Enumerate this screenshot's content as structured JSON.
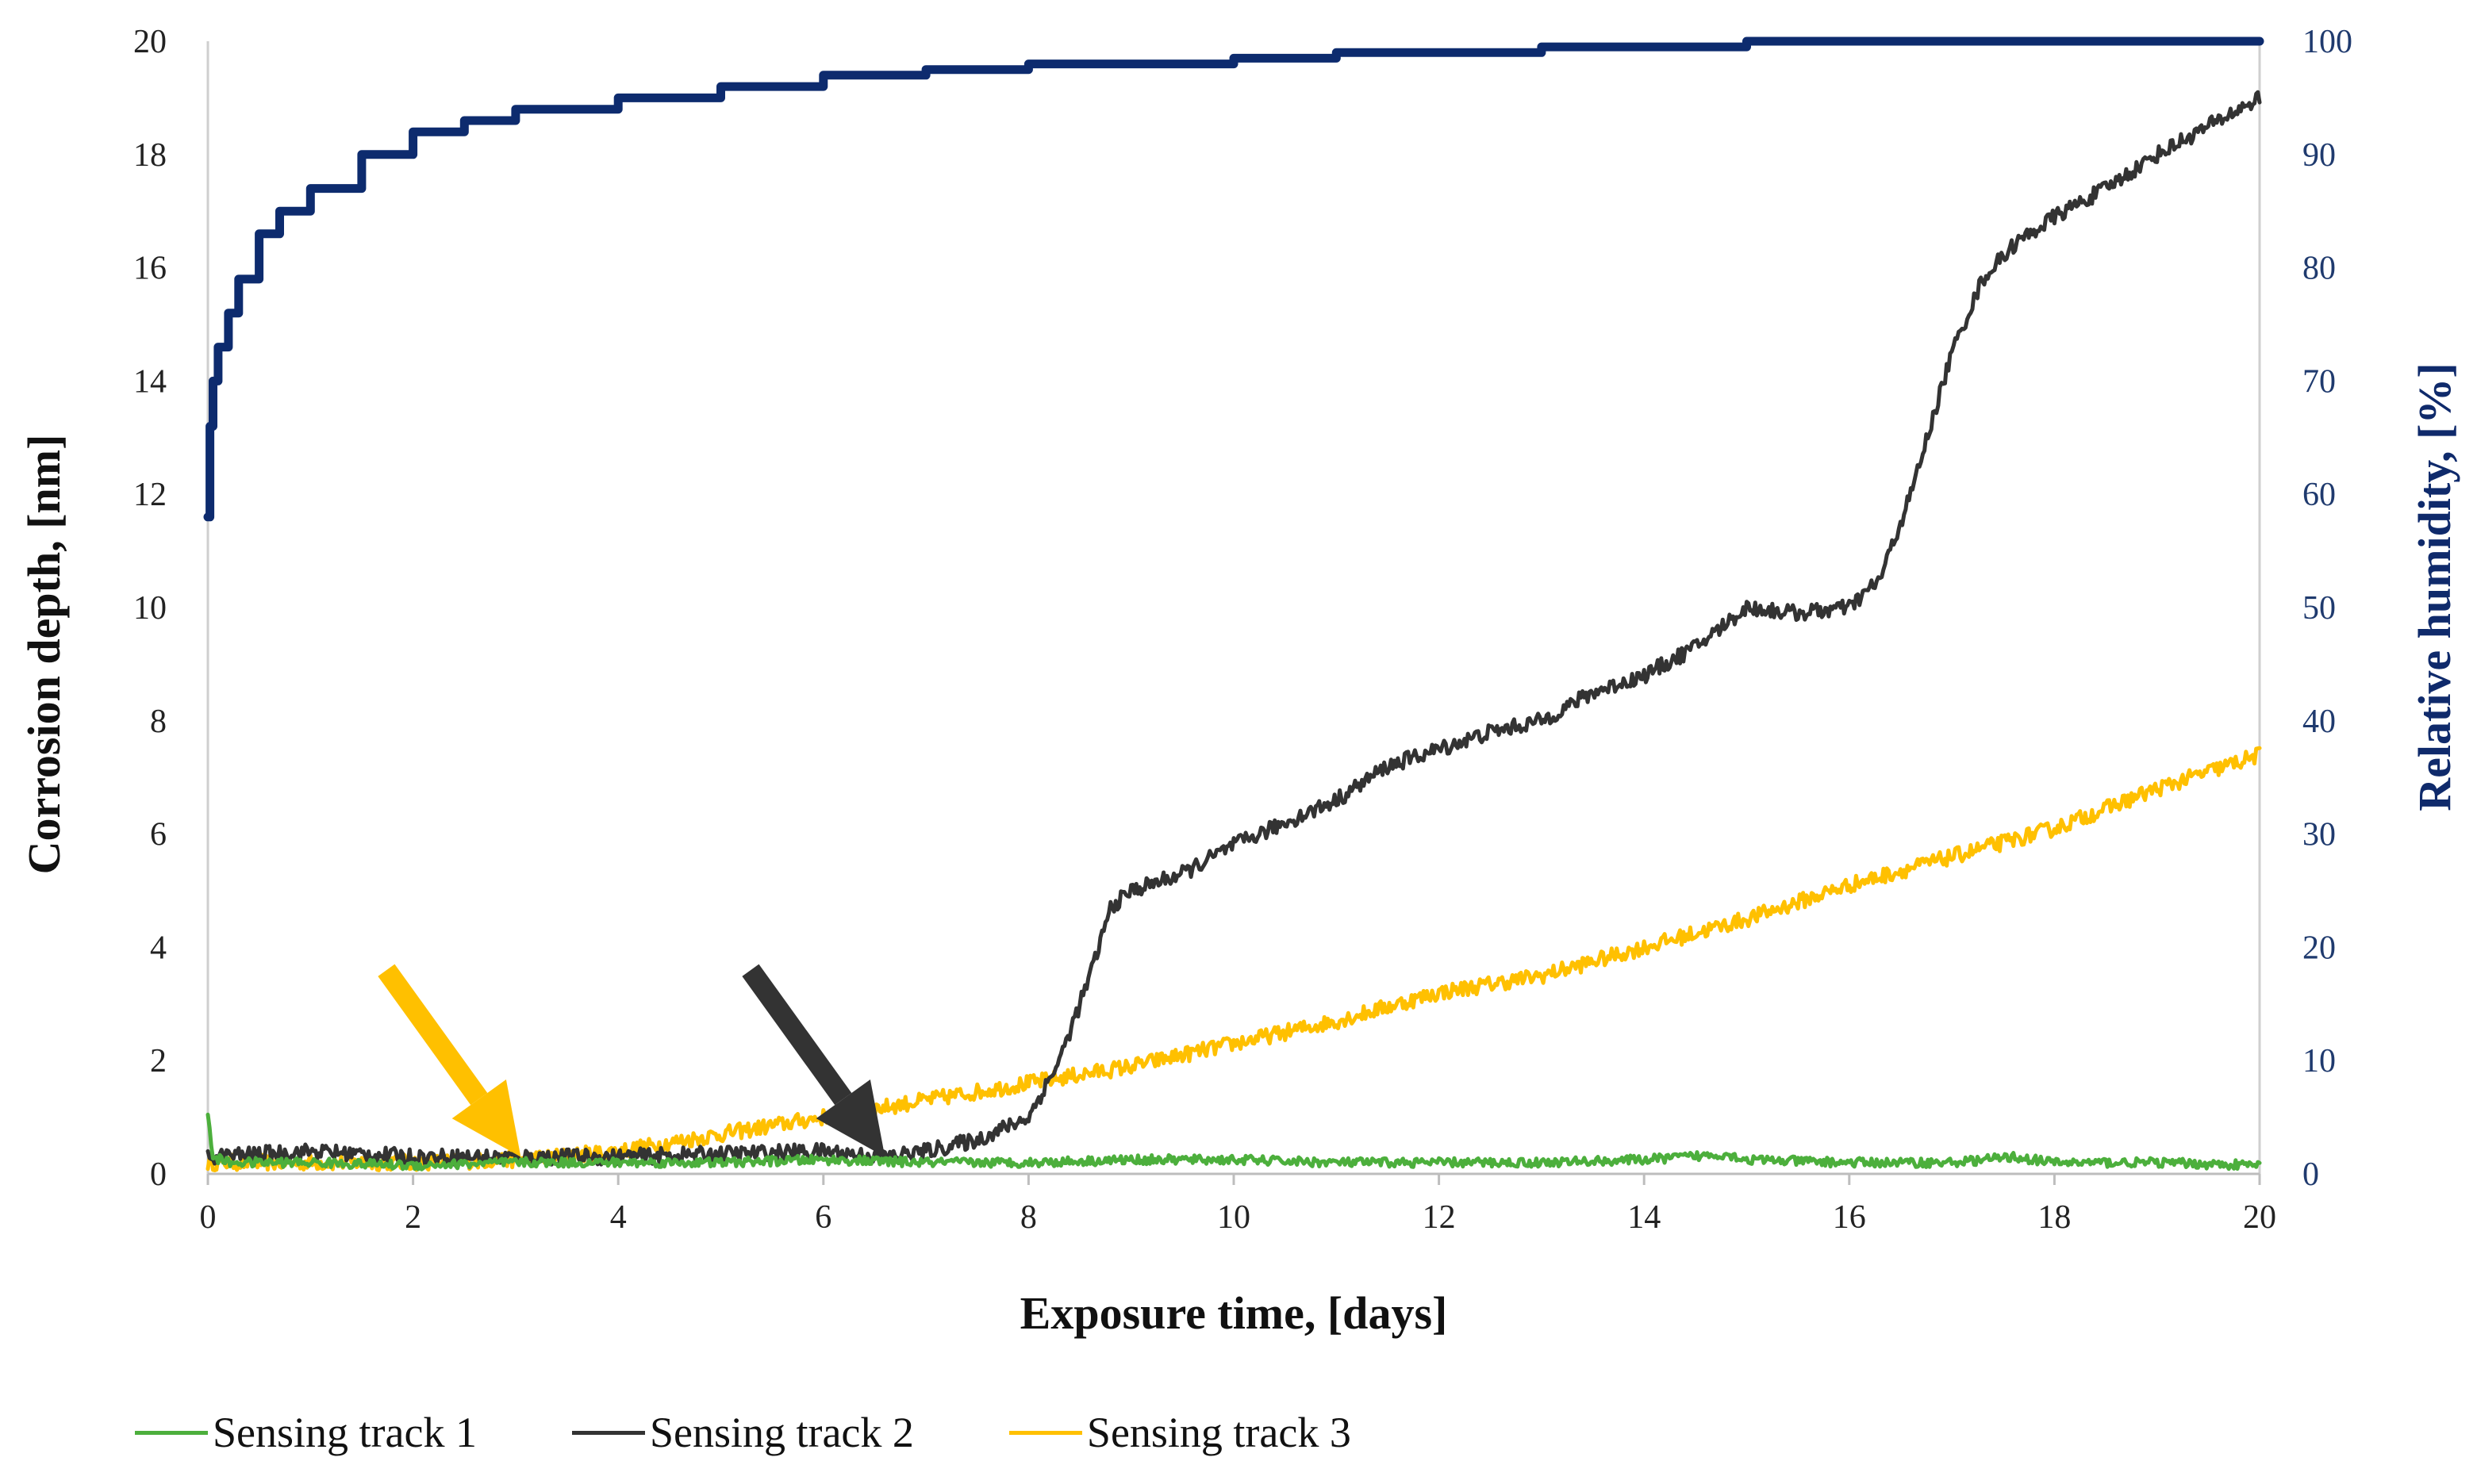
{
  "chart_data": {
    "type": "line",
    "title": "",
    "xlabel": "Exposure time, [days]",
    "ylabel": "Corrosion depth, [nm]",
    "y2label": "Relative humidity, [%]",
    "xlim": [
      0,
      20
    ],
    "ylim": [
      0,
      20
    ],
    "y2lim": [
      0,
      100
    ],
    "xticks": [
      0,
      2,
      4,
      6,
      8,
      10,
      12,
      14,
      16,
      18,
      20
    ],
    "yticks": [
      0,
      2,
      4,
      6,
      8,
      10,
      12,
      14,
      16,
      18,
      20
    ],
    "y2ticks": [
      0,
      10,
      20,
      30,
      40,
      50,
      60,
      70,
      80,
      90,
      100
    ],
    "grid": false,
    "legend_position": "bottom",
    "series": [
      {
        "name": "Sensing track 1",
        "axis": "left",
        "color": "#4caf3c",
        "x": [
          0,
          0.05,
          0.2,
          1,
          2,
          3,
          4,
          5,
          6,
          7,
          8,
          9,
          10,
          11,
          12,
          13,
          14,
          14.8,
          15,
          16,
          17,
          17.6,
          18,
          19,
          20
        ],
        "y": [
          1.0,
          0.3,
          0.2,
          0.2,
          0.15,
          0.2,
          0.2,
          0.2,
          0.25,
          0.2,
          0.2,
          0.25,
          0.25,
          0.2,
          0.2,
          0.2,
          0.25,
          0.35,
          0.25,
          0.2,
          0.2,
          0.3,
          0.2,
          0.2,
          0.15
        ]
      },
      {
        "name": "Sensing track 2",
        "axis": "left",
        "color": "#333333",
        "x": [
          0,
          1,
          2,
          3,
          4,
          5,
          6,
          6.6,
          7,
          7.5,
          8,
          8.3,
          8.6,
          8.8,
          9,
          9.5,
          10,
          10.5,
          11,
          11.5,
          12,
          12.5,
          13,
          13.5,
          14,
          14.5,
          15,
          15.5,
          16,
          16.3,
          16.6,
          17,
          17.3,
          17.6,
          18,
          18.5,
          19,
          19.5,
          20
        ],
        "y": [
          0.3,
          0.4,
          0.3,
          0.3,
          0.3,
          0.35,
          0.4,
          0.3,
          0.4,
          0.6,
          1.0,
          2.0,
          3.5,
          4.7,
          5.0,
          5.3,
          5.8,
          6.2,
          6.6,
          7.2,
          7.5,
          7.8,
          8.0,
          8.5,
          8.8,
          9.3,
          10.0,
          9.9,
          10.0,
          10.5,
          12.0,
          14.5,
          15.8,
          16.4,
          16.9,
          17.4,
          18.0,
          18.5,
          19.0
        ]
      },
      {
        "name": "Sensing track 3",
        "axis": "left",
        "color": "#ffc000",
        "x": [
          0,
          1,
          2,
          3,
          4,
          5,
          6,
          7,
          8,
          9,
          10,
          11,
          12,
          13,
          14,
          15,
          16,
          17,
          18,
          19,
          20
        ],
        "y": [
          0.2,
          0.2,
          0.2,
          0.25,
          0.4,
          0.7,
          1.0,
          1.3,
          1.6,
          1.9,
          2.3,
          2.7,
          3.2,
          3.5,
          4.0,
          4.5,
          5.1,
          5.6,
          6.1,
          6.8,
          7.4
        ]
      },
      {
        "name": "Relative humidity",
        "axis": "right",
        "color": "#0d2b6e",
        "x": [
          0,
          0.02,
          0.05,
          0.1,
          0.2,
          0.3,
          0.5,
          0.7,
          1,
          1.5,
          2,
          2.5,
          3,
          4,
          5,
          6,
          7,
          8,
          9,
          10,
          11,
          12,
          13,
          14,
          15,
          16,
          17,
          18,
          19,
          20
        ],
        "y": [
          58,
          66,
          70,
          73,
          76,
          79,
          83,
          85,
          87,
          90,
          92,
          93,
          94,
          95,
          96,
          97,
          97.5,
          98,
          98,
          98.5,
          99,
          99,
          99.5,
          99.5,
          100,
          100,
          100,
          100,
          100,
          100
        ]
      }
    ],
    "annotations": [
      {
        "type": "arrow",
        "color": "#ffc000",
        "points_to": {
          "x": 3.05,
          "y": 0.3
        }
      },
      {
        "type": "arrow",
        "color": "#333333",
        "points_to": {
          "x": 6.6,
          "y": 0.3
        }
      }
    ]
  }
}
